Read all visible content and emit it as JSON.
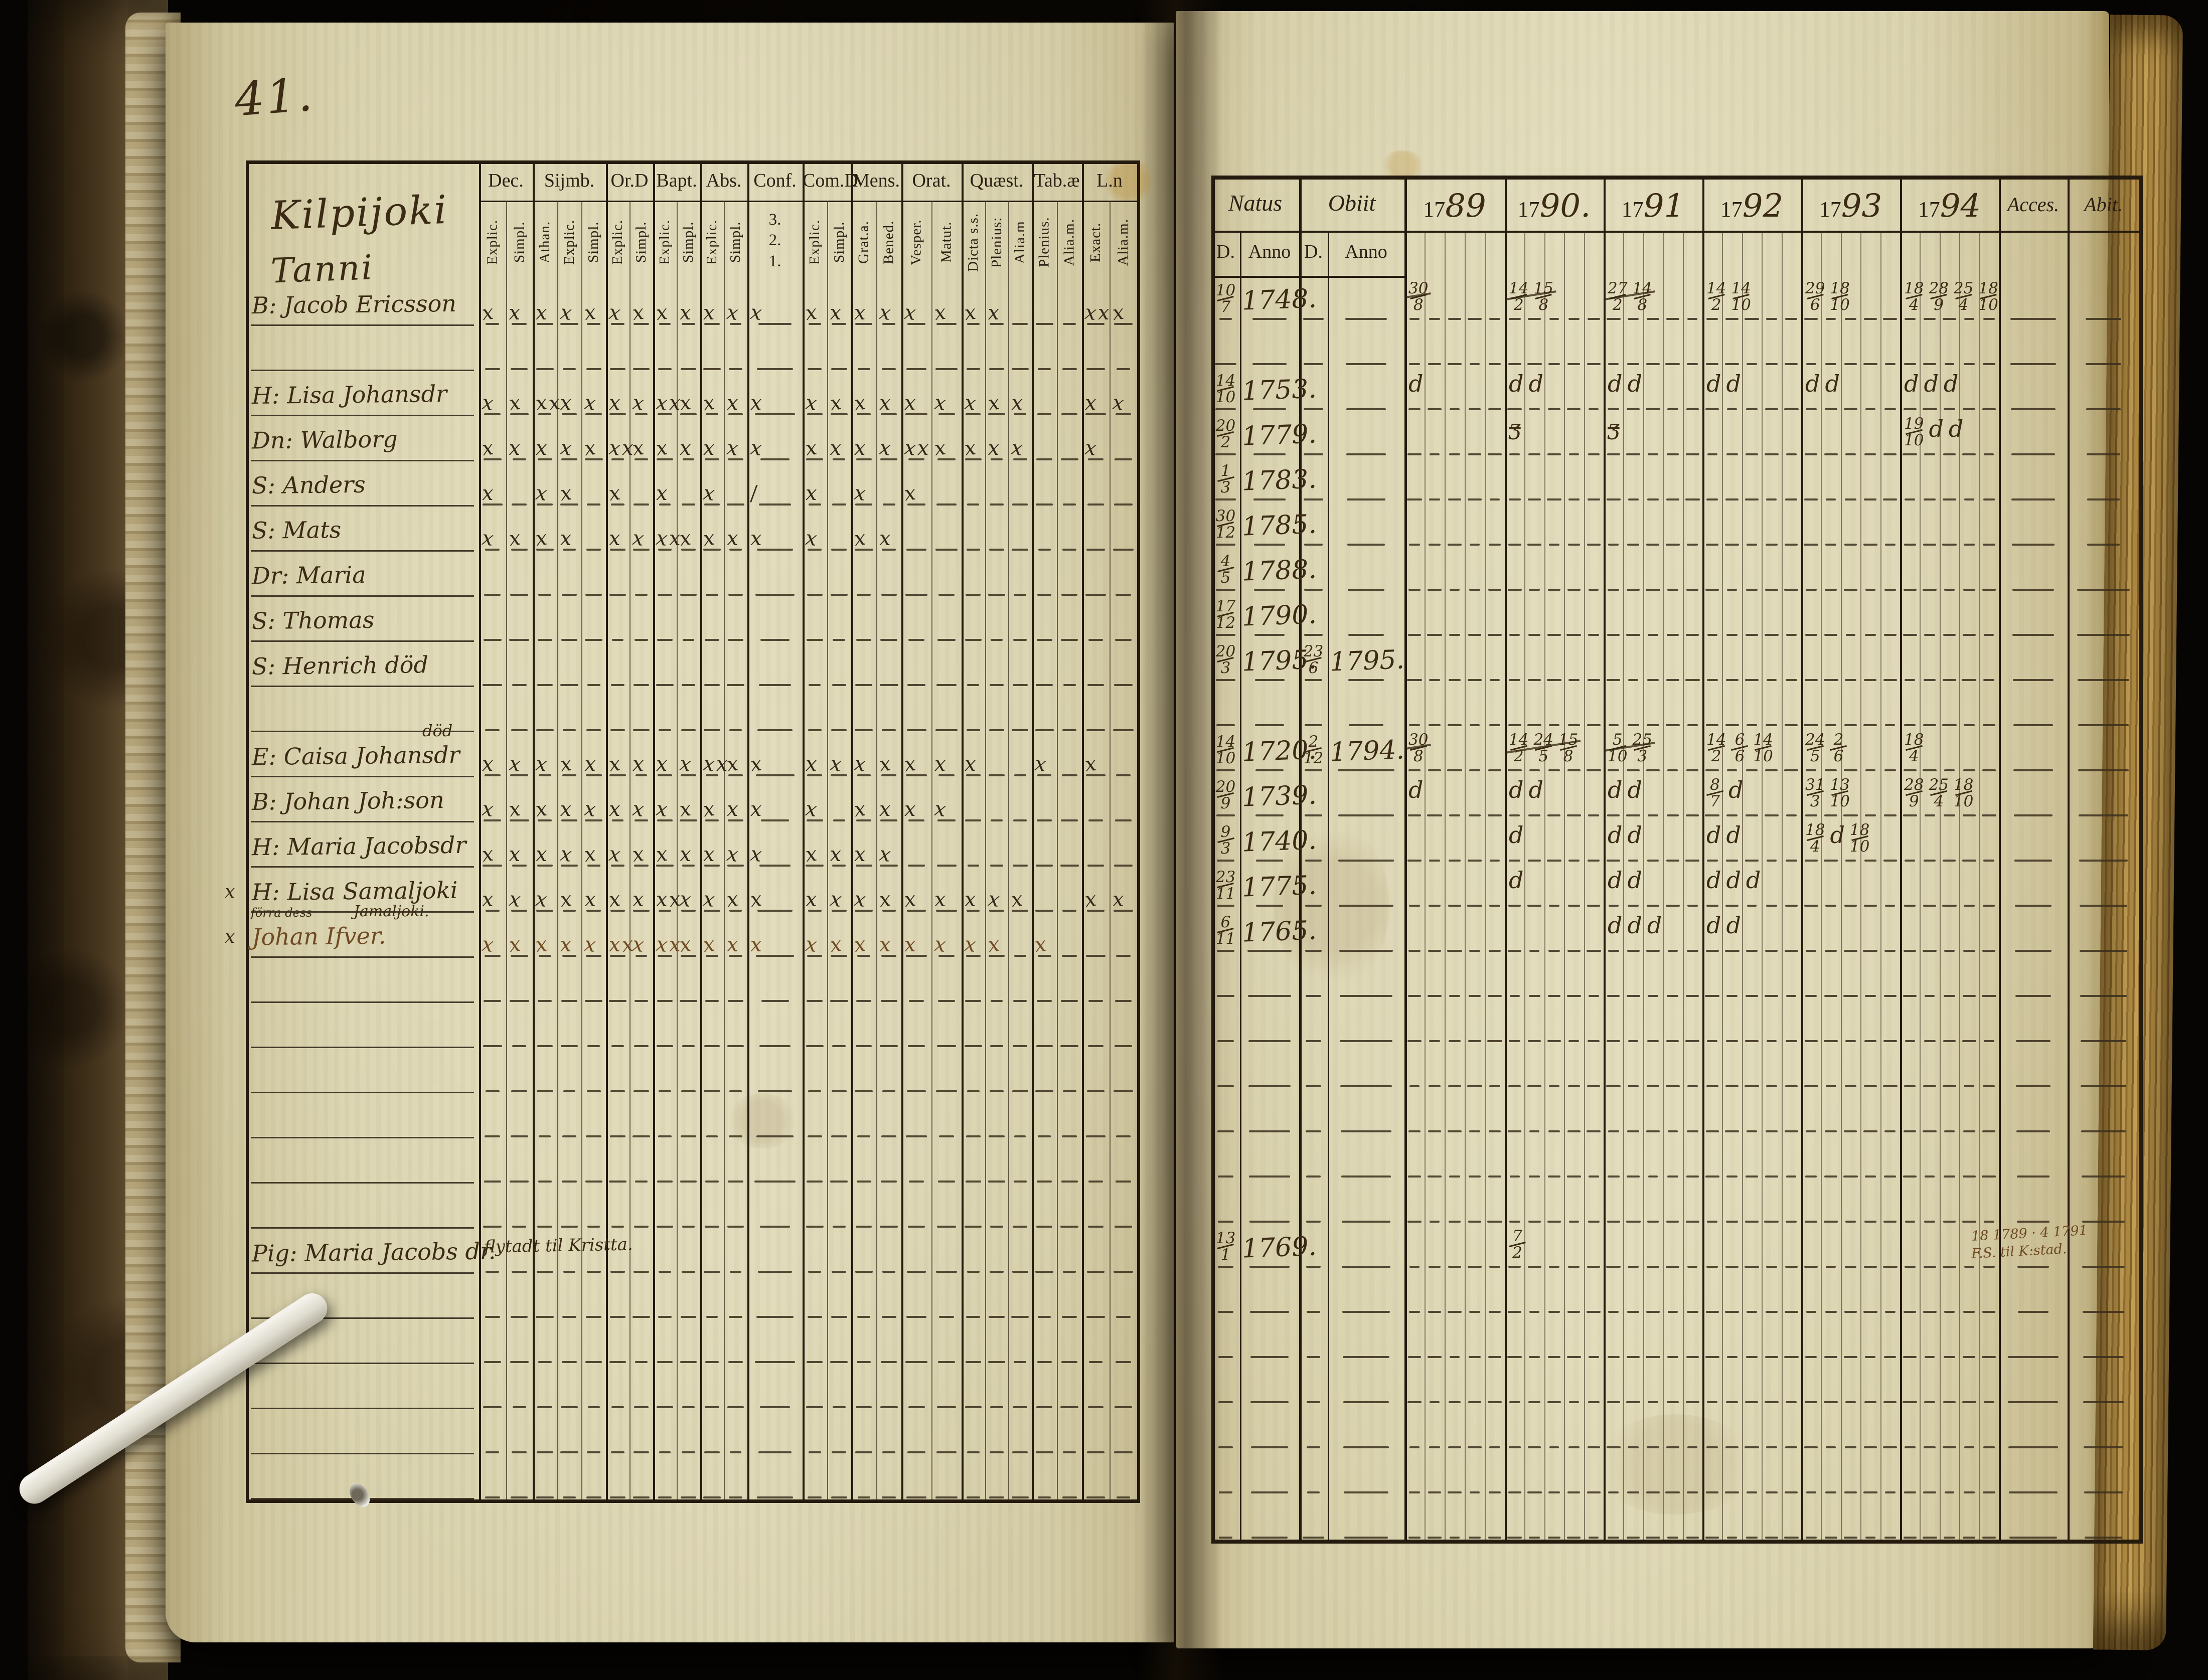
{
  "book": {
    "page_number": "41.",
    "left_page": {
      "title_line1": "Kilpijoki",
      "title_line2": "Tanni",
      "columns": [
        {
          "label": "Dec.",
          "subs": [
            "Explic.",
            "Simpl."
          ]
        },
        {
          "label": "Sijmb.",
          "subs": [
            "Athan.",
            "Explic.",
            "Simpl."
          ]
        },
        {
          "label": "Or.D",
          "subs": [
            "Explic.",
            "Simpl."
          ]
        },
        {
          "label": "Bapt.",
          "subs": [
            "Explic.",
            "Simpl."
          ]
        },
        {
          "label": "Abs.",
          "subs": [
            "Explic.",
            "Simpl."
          ]
        },
        {
          "label": "Conf.",
          "subs": [
            "3.",
            "2.",
            "1."
          ],
          "stack": true
        },
        {
          "label": "Com.D",
          "subs": [
            "Explic.",
            "Simpl."
          ]
        },
        {
          "label": "Mens.",
          "subs": [
            "Grat.a.",
            "Bened."
          ]
        },
        {
          "label": "Orat.",
          "subs": [
            "Vesper.",
            "Matut."
          ]
        },
        {
          "label": "Quæst.",
          "subs": [
            "Dicta s.s.",
            "Plenius:",
            "Alia.m"
          ]
        },
        {
          "label": "Tab.æ",
          "subs": [
            "Plenius.",
            "Alia.m."
          ]
        },
        {
          "label": "L.n",
          "subs": [
            "Exact.",
            "Alia.m."
          ]
        }
      ],
      "rows": [
        {
          "name": "B: Jacob Ericsson",
          "marks": [
            "xx",
            "xxx",
            "xx",
            "xx",
            "xx",
            "x",
            "xx",
            "xx",
            "xx",
            "xx",
            "",
            "xxx"
          ]
        },
        null,
        {
          "name": "H: Lisa Johansdr",
          "marks": [
            "xx",
            "xxxx",
            "xx",
            "xxx",
            "xx",
            "x",
            "xx",
            "xx",
            "xx",
            "xxx",
            "",
            "xx"
          ]
        },
        {
          "name": "Dn: Walborg",
          "marks": [
            "xx",
            "xxx",
            "xxx",
            "xx",
            "xx",
            "x",
            "xx",
            "xx",
            "xxx",
            "xxx",
            "",
            "x"
          ]
        },
        {
          "name": "S: Anders",
          "marks": [
            "x",
            "xx",
            "x",
            "x",
            "x",
            "/",
            "x",
            "x",
            "x",
            "",
            "",
            ""
          ]
        },
        {
          "name": "S: Mats",
          "marks": [
            "xx",
            "xx",
            "xx",
            "xxx",
            "xx",
            "x",
            "x",
            "xx",
            "",
            "",
            "",
            ""
          ]
        },
        {
          "name": "Dr: Maria",
          "marks": [
            "",
            "",
            "",
            "",
            "",
            "",
            "",
            "",
            "",
            "",
            "",
            ""
          ]
        },
        {
          "name": "S: Thomas",
          "marks": [
            "",
            "",
            "",
            "",
            "",
            "",
            "",
            "",
            "",
            "",
            "",
            ""
          ]
        },
        {
          "name": "S: Henrich  död",
          "marks": [
            "",
            "",
            "",
            "",
            "",
            "",
            "",
            "",
            "",
            "",
            "",
            ""
          ]
        },
        null,
        {
          "name": "E: Caisa Johansdr",
          "note_above": "död",
          "marks": [
            "xx",
            "xxx",
            "xx",
            "xx",
            "xxx",
            "x",
            "xx",
            "xx",
            "xx",
            "x",
            "x",
            "x"
          ]
        },
        {
          "name": "B: Johan Joh:son",
          "marks": [
            "xx",
            "xxx",
            "xx",
            "xx",
            "xx",
            "x",
            "x",
            "xx",
            "xx",
            "",
            "",
            ""
          ]
        },
        {
          "name": "H: Maria Jacobsdr",
          "marks": [
            "xx",
            "xxx",
            "xx",
            "xx",
            "xx",
            "x",
            "xx",
            "xx",
            "",
            "",
            "",
            ""
          ]
        },
        {
          "name": "H: Lisa Samaljoki",
          "margin": "x",
          "marks": [
            "xx",
            "xxx",
            "xx",
            "xxx",
            "xx",
            "x",
            "xx",
            "xx",
            "xx",
            "xxx",
            "",
            "xx"
          ]
        },
        {
          "name": "Johan Ifver.",
          "margin": "x",
          "ink": "brown",
          "note_above_left": "förra dess",
          "note_above_right": "Jamaljoki.",
          "marks": [
            "xx",
            "xxx",
            "xxx",
            "xxx",
            "xx",
            "x",
            "xx",
            "xx",
            "xx",
            "xx",
            "x",
            ""
          ]
        },
        null,
        null,
        null,
        null,
        null,
        null,
        {
          "name": "Pig: Maria Jacobs dr.",
          "note_right": "flytadt til Kristta.",
          "marks": [
            "",
            "",
            "",
            "",
            "",
            "",
            "",
            "",
            "",
            "",
            "",
            ""
          ]
        },
        null,
        null,
        null,
        null,
        null
      ]
    },
    "right_page": {
      "natus_label": "Natus",
      "obiit_label": "Obiit",
      "d_label": "D.",
      "anno_label": "Anno",
      "acces_label": "Acces.",
      "abit_label": "Abit.",
      "years": [
        {
          "printed": "17",
          "script": "89"
        },
        {
          "printed": "17",
          "script": "90."
        },
        {
          "printed": "17",
          "script": "91"
        },
        {
          "printed": "17",
          "script": "92"
        },
        {
          "printed": "17",
          "script": "93"
        },
        {
          "printed": "17",
          "script": "94"
        }
      ],
      "rows": [
        {
          "natus_d": "10/7",
          "natus_anno": "1748.",
          "obiit_d": "",
          "obiit_anno": "",
          "marks": [
            "~30/8",
            "~14/2 15/8",
            "~27/2 14/8",
            "14/2 14/10",
            "29/6 18/10",
            "18/4 28/9 25/4 18/10"
          ]
        },
        null,
        {
          "natus_d": "14/10",
          "natus_anno": "1753.",
          "obiit_d": "",
          "obiit_anno": "",
          "marks": [
            "d",
            "d d",
            "d d",
            "d d",
            "d d",
            "d d d"
          ]
        },
        {
          "natus_d": "20/2",
          "natus_anno": "1779.",
          "obiit_d": "",
          "obiit_anno": "",
          "marks": [
            "",
            "z",
            "z",
            "",
            "",
            "19/10 d d"
          ]
        },
        {
          "natus_d": "1/3",
          "natus_anno": "1783.",
          "obiit_d": "",
          "obiit_anno": "",
          "marks": [
            "",
            "",
            "",
            "",
            "",
            ""
          ]
        },
        {
          "natus_d": "30/12",
          "natus_anno": "1785.",
          "obiit_d": "",
          "obiit_anno": "",
          "marks": [
            "",
            "",
            "",
            "",
            "",
            ""
          ]
        },
        {
          "natus_d": "4/5",
          "natus_anno": "1788.",
          "obiit_d": "",
          "obiit_anno": "",
          "marks": [
            "",
            "",
            "",
            "",
            "",
            ""
          ]
        },
        {
          "natus_d": "17/12",
          "natus_anno": "1790.",
          "obiit_d": "",
          "obiit_anno": "",
          "marks": [
            "",
            "",
            "",
            "",
            "",
            ""
          ]
        },
        {
          "natus_d": "20/3",
          "natus_anno": "1795.",
          "obiit_d": "23/6",
          "obiit_anno": "1795.",
          "marks": [
            "",
            "",
            "",
            "",
            "",
            ""
          ]
        },
        null,
        {
          "natus_d": "14/10",
          "natus_anno": "1720.",
          "obiit_d": "2/12",
          "obiit_anno": "1794.",
          "marks": [
            "~30/8",
            "~14/2 24/5 15/8",
            "~5/10 25/3",
            "14/2 6/6 14/10",
            "24/5 2/6",
            "18/4"
          ]
        },
        {
          "natus_d": "20/9",
          "natus_anno": "1739.",
          "obiit_d": "",
          "obiit_anno": "",
          "marks": [
            "d",
            "d d",
            "d d",
            "8/7 d",
            "31/3 13/10",
            "28/9 25/4 18/10"
          ]
        },
        {
          "natus_d": "9/3",
          "natus_anno": "1740.",
          "obiit_d": "",
          "obiit_anno": "",
          "marks": [
            "",
            "d",
            "d d",
            "d d",
            "18/4 d 18/10",
            ""
          ]
        },
        {
          "natus_d": "23/11",
          "natus_anno": "1775.",
          "obiit_d": "",
          "obiit_anno": "",
          "marks": [
            "",
            "d",
            "d d",
            "d d d",
            "",
            ""
          ]
        },
        {
          "natus_d": "6/11",
          "natus_anno": "1765.",
          "obiit_d": "",
          "obiit_anno": "",
          "marks": [
            "",
            "",
            "d d d",
            "d d",
            "",
            ""
          ]
        },
        null,
        null,
        null,
        null,
        null,
        null,
        {
          "natus_d": "13/1",
          "natus_anno": "1769.",
          "obiit_d": "",
          "obiit_anno": "",
          "marks": [
            "",
            "7/2",
            "",
            "",
            "",
            ""
          ],
          "note_lines": [
            "18 1789 · 4 1791",
            "F.S. til K:stad."
          ]
        },
        null,
        null,
        null,
        null,
        null,
        null
      ]
    }
  }
}
